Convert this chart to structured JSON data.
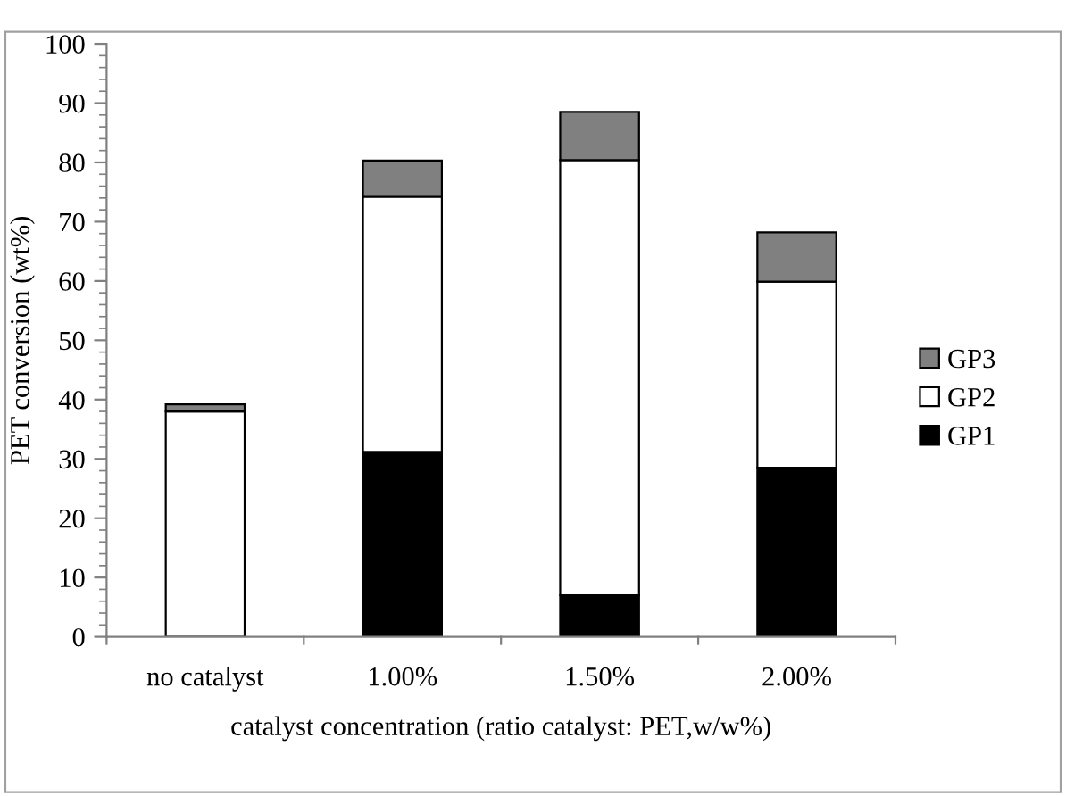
{
  "chart_data": {
    "type": "bar",
    "stacked": true,
    "xlabel": "catalyst concentration (ratio catalyst: PET,w/w%)",
    "ylabel": "PET conversion (wt%)",
    "categories": [
      "no catalyst",
      "1.00%",
      "1.50%",
      "2.00%"
    ],
    "series": [
      {
        "name": "GP1",
        "color": "#000000",
        "values": [
          0,
          31.2,
          7,
          28.5
        ]
      },
      {
        "name": "GP2",
        "color": "#ffffff",
        "values": [
          38,
          43,
          73.4,
          31.4
        ]
      },
      {
        "name": "GP3",
        "color": "#808080",
        "values": [
          1.2,
          6.1,
          8.1,
          8.3
        ]
      }
    ],
    "ylim": [
      0,
      100
    ],
    "yticks": [
      0,
      {
        "value": 2,
        "label": null
      },
      {
        "value": 4,
        "label": null
      },
      {
        "value": 6,
        "label": null
      },
      {
        "value": 8,
        "label": null
      },
      10,
      {
        "value": 12,
        "label": null
      },
      {
        "value": 14,
        "label": null
      },
      {
        "value": 16,
        "label": null
      },
      {
        "value": 18,
        "label": null
      },
      20,
      {
        "value": 22,
        "label": null
      },
      {
        "value": 24,
        "label": null
      },
      {
        "value": 26,
        "label": null
      },
      {
        "value": 28,
        "label": null
      },
      30,
      {
        "value": 32,
        "label": null
      },
      {
        "value": 34,
        "label": null
      },
      {
        "value": 36,
        "label": null
      },
      {
        "value": 38,
        "label": null
      },
      40,
      {
        "value": 42,
        "label": null
      },
      {
        "value": 44,
        "label": null
      },
      {
        "value": 46,
        "label": null
      },
      {
        "value": 48,
        "label": null
      },
      50,
      {
        "value": 52,
        "label": null
      },
      {
        "value": 54,
        "label": null
      },
      {
        "value": 56,
        "label": null
      },
      {
        "value": 58,
        "label": null
      },
      60,
      {
        "value": 62,
        "label": null
      },
      {
        "value": 64,
        "label": null
      },
      {
        "value": 66,
        "label": null
      },
      {
        "value": 68,
        "label": null
      },
      70,
      {
        "value": 72,
        "label": null
      },
      {
        "value": 74,
        "label": null
      },
      {
        "value": 76,
        "label": null
      },
      {
        "value": 78,
        "label": null
      },
      80,
      {
        "value": 82,
        "label": null
      },
      {
        "value": 84,
        "label": null
      },
      {
        "value": 86,
        "label": null
      },
      {
        "value": 88,
        "label": null
      },
      90,
      {
        "value": 92,
        "label": null
      },
      {
        "value": 94,
        "label": null
      },
      {
        "value": 96,
        "label": null
      },
      {
        "value": 98,
        "label": null
      },
      100
    ],
    "grid": false,
    "legend": "right"
  }
}
